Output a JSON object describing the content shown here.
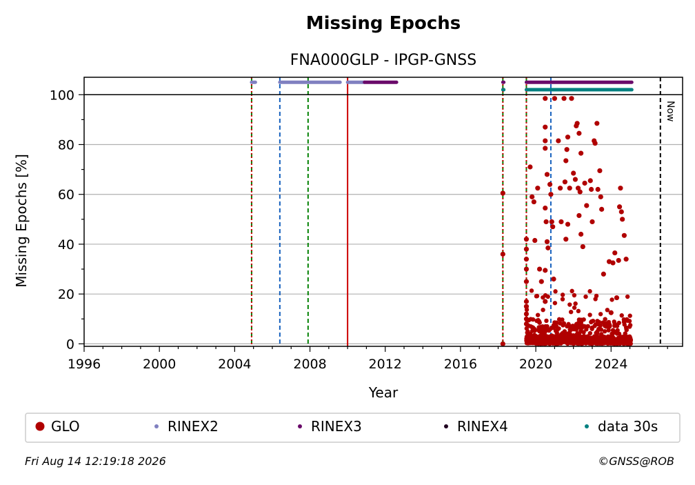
{
  "chart_data": {
    "type": "scatter",
    "title": "Missing Epochs",
    "subtitle": "FNA000GLP - IPGP-GNSS",
    "xlabel": "Year",
    "ylabel": "Missing Epochs [%]",
    "xlim": [
      1996,
      2027.8
    ],
    "ylim": [
      -1,
      107
    ],
    "xticks": [
      1996,
      2000,
      2004,
      2008,
      2012,
      2016,
      2020,
      2024
    ],
    "yticks": [
      0,
      20,
      40,
      60,
      80,
      100
    ],
    "grid": "horizontal",
    "legend_position": "bottom",
    "now_label": "Now",
    "now_x": 2026.62,
    "reference_line_y": 100,
    "vertical_lines": [
      {
        "x": 2004.9,
        "color": "#008000",
        "style": "dashed"
      },
      {
        "x": 2004.9,
        "color": "#cc0000",
        "style": "dotted"
      },
      {
        "x": 2006.4,
        "color": "#1560bd",
        "style": "dashed"
      },
      {
        "x": 2007.9,
        "color": "#008000",
        "style": "dashed"
      },
      {
        "x": 2010.0,
        "color": "#cc0000",
        "style": "solid"
      },
      {
        "x": 2018.25,
        "color": "#008000",
        "style": "dashed"
      },
      {
        "x": 2018.25,
        "color": "#cc0000",
        "style": "dotted"
      },
      {
        "x": 2019.5,
        "color": "#008000",
        "style": "dashed"
      },
      {
        "x": 2019.5,
        "color": "#cc0000",
        "style": "dotted"
      },
      {
        "x": 2020.8,
        "color": "#1560bd",
        "style": "dashed"
      }
    ],
    "strips": [
      {
        "name": "RINEX2",
        "y": 105,
        "color": "#8080c0",
        "segments": [
          [
            2004.9,
            2005.1
          ],
          [
            2006.4,
            2009.6
          ],
          [
            2010.0,
            2010.9
          ]
        ]
      },
      {
        "name": "RINEX3",
        "y": 105,
        "color": "#6a0a6a",
        "segments": [
          [
            2010.9,
            2012.6
          ],
          [
            2018.25,
            2018.3
          ],
          [
            2019.5,
            2025.1
          ]
        ]
      },
      {
        "name": "data 30s",
        "y": 102,
        "color": "#008080",
        "segments": [
          [
            2018.25,
            2018.3
          ],
          [
            2019.5,
            2025.1
          ]
        ]
      }
    ],
    "series": [
      {
        "name": "GLO",
        "color": "#b00000",
        "points": [
          [
            2018.25,
            60.5
          ],
          [
            2018.25,
            36
          ],
          [
            2018.25,
            0
          ],
          [
            2019.5,
            42
          ],
          [
            2019.5,
            38
          ],
          [
            2019.5,
            34
          ],
          [
            2019.5,
            30
          ],
          [
            2019.5,
            25
          ],
          [
            2019.5,
            17
          ],
          [
            2019.5,
            15
          ],
          [
            2019.5,
            12
          ],
          [
            2019.5,
            10
          ],
          [
            2019.5,
            8
          ],
          [
            2019.7,
            71
          ],
          [
            2019.8,
            59
          ],
          [
            2019.9,
            57
          ],
          [
            2019.95,
            41.5
          ],
          [
            2020.1,
            62.5
          ],
          [
            2020.2,
            30
          ],
          [
            2020.3,
            25
          ],
          [
            2020.5,
            98.5
          ],
          [
            2020.5,
            87
          ],
          [
            2020.5,
            81.5
          ],
          [
            2020.5,
            78.5
          ],
          [
            2020.6,
            68
          ],
          [
            2020.5,
            54.5
          ],
          [
            2020.55,
            49
          ],
          [
            2020.6,
            41
          ],
          [
            2020.65,
            38.5
          ],
          [
            2020.5,
            29.5
          ],
          [
            2020.5,
            17
          ],
          [
            2020.75,
            64
          ],
          [
            2020.8,
            60
          ],
          [
            2020.85,
            49
          ],
          [
            2020.9,
            47
          ],
          [
            2020.95,
            26
          ],
          [
            2021.0,
            98.5
          ],
          [
            2021.2,
            81.5
          ],
          [
            2021.3,
            62.5
          ],
          [
            2021.35,
            49
          ],
          [
            2021.5,
            98.5
          ],
          [
            2021.6,
            73.5
          ],
          [
            2021.55,
            65
          ],
          [
            2021.7,
            83
          ],
          [
            2021.65,
            78
          ],
          [
            2021.8,
            62.5
          ],
          [
            2021.7,
            48
          ],
          [
            2021.6,
            42
          ],
          [
            2021.9,
            98.5
          ],
          [
            2022.0,
            68.5
          ],
          [
            2022.1,
            66
          ],
          [
            2022.2,
            88.5
          ],
          [
            2022.15,
            87.5
          ],
          [
            2022.3,
            84.5
          ],
          [
            2022.25,
            62.5
          ],
          [
            2022.4,
            76.5
          ],
          [
            2022.35,
            61
          ],
          [
            2022.3,
            51.5
          ],
          [
            2022.4,
            44
          ],
          [
            2022.5,
            39
          ],
          [
            2022.6,
            64.5
          ],
          [
            2022.7,
            55.5
          ],
          [
            2022.9,
            65.5
          ],
          [
            2022.95,
            62
          ],
          [
            2023.0,
            49
          ],
          [
            2023.1,
            81.5
          ],
          [
            2023.15,
            80.5
          ],
          [
            2023.25,
            88.5
          ],
          [
            2023.3,
            62
          ],
          [
            2023.4,
            69.5
          ],
          [
            2023.45,
            59
          ],
          [
            2023.5,
            54
          ],
          [
            2023.6,
            28
          ],
          [
            2023.9,
            33
          ],
          [
            2024.0,
            12.5
          ],
          [
            2024.1,
            32.5
          ],
          [
            2024.2,
            36.5
          ],
          [
            2024.3,
            18.5
          ],
          [
            2024.4,
            33.5
          ],
          [
            2024.45,
            55
          ],
          [
            2024.5,
            62.5
          ],
          [
            2024.55,
            53
          ],
          [
            2024.6,
            50
          ],
          [
            2024.7,
            43.5
          ],
          [
            2024.8,
            34
          ]
        ]
      },
      {
        "name": "RINEX2",
        "color": "#8080c0",
        "points": []
      },
      {
        "name": "RINEX3",
        "color": "#6a0a6a",
        "points": []
      },
      {
        "name": "RINEX4",
        "color": "#200020",
        "points": []
      },
      {
        "name": "data 30s",
        "color": "#008080",
        "points": []
      }
    ]
  },
  "footer": {
    "timestamp": "Fri Aug 14 12:19:18 2026",
    "copyright": "©GNSS@ROB"
  }
}
